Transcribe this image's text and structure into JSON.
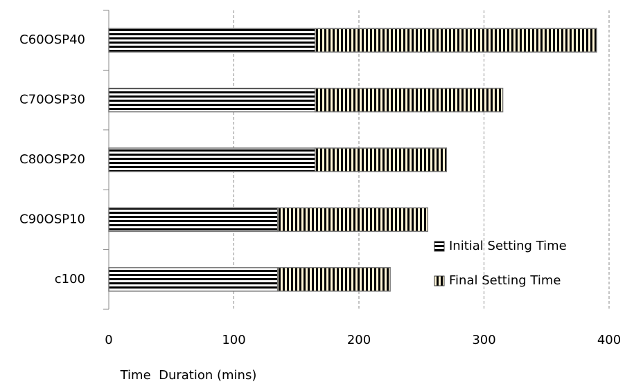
{
  "chart_data": {
    "type": "stacked-barh",
    "categories": [
      "c100",
      "C90OSP10",
      "C80OSP20",
      "C70OSP30",
      "C60OSP40"
    ],
    "series": [
      {
        "name": "Initial Setting Time",
        "color": "#000000",
        "values": [
          135,
          135,
          165,
          165,
          165
        ]
      },
      {
        "name": "Final Setting Time",
        "color": "#000000",
        "values": [
          90,
          120,
          105,
          150,
          225
        ]
      }
    ],
    "x_label": "Time  Duration (mins)",
    "xlim": [
      0,
      400
    ],
    "xticks": [
      0,
      100,
      200,
      300,
      400
    ],
    "grid": true,
    "legend": "lower right"
  }
}
